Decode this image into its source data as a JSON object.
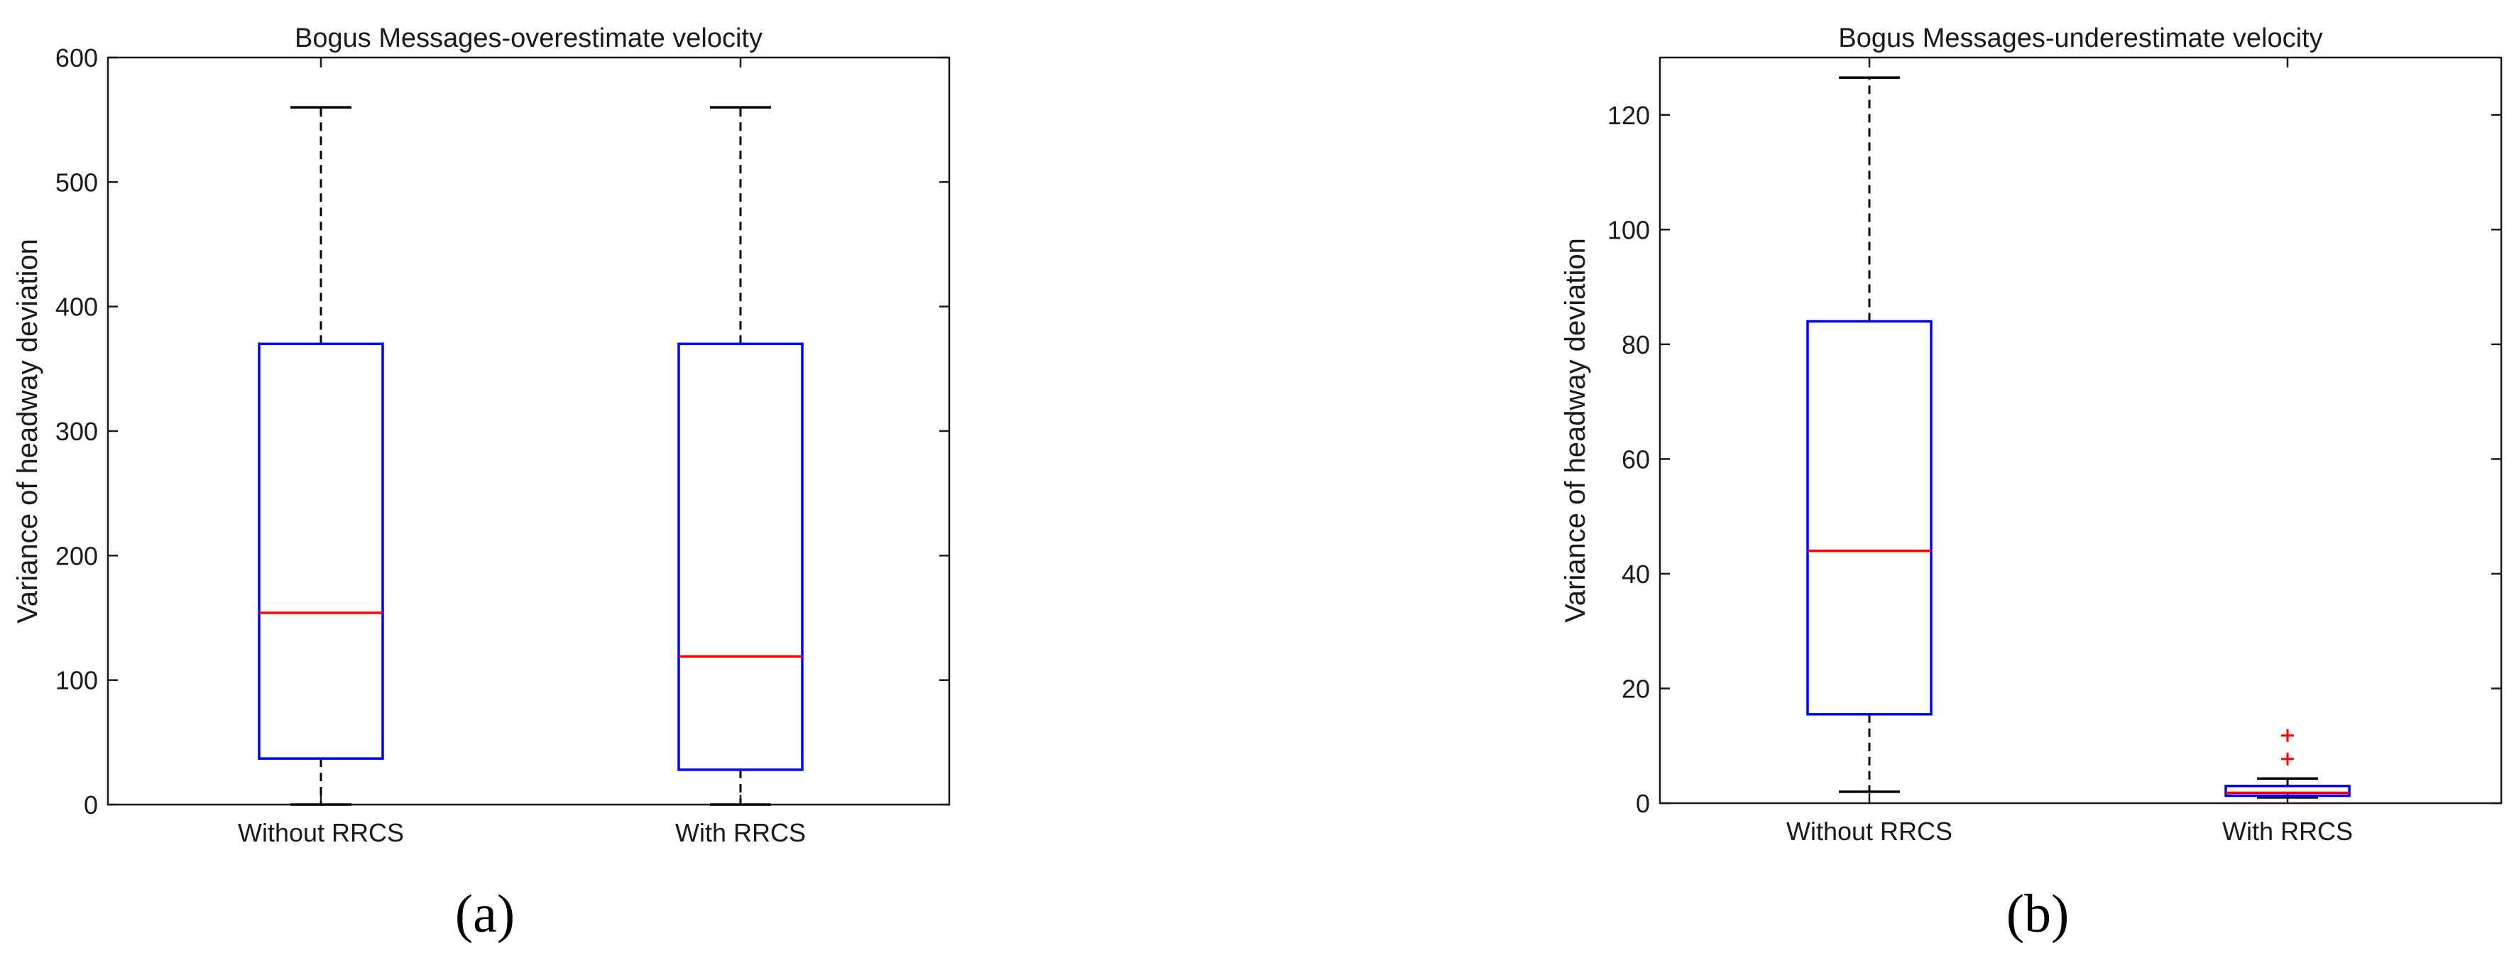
{
  "chart_data": [
    {
      "type": "box",
      "panel_label": "(a)",
      "title": "Bogus Messages-overestimate velocity",
      "xlabel": "",
      "ylabel": "Variance of headway deviation",
      "ylim": [
        0,
        600
      ],
      "yticks": [
        0,
        100,
        200,
        300,
        400,
        500,
        600
      ],
      "categories": [
        "Without RRCS",
        "With RRCS"
      ],
      "boxes": [
        {
          "category": "Without RRCS",
          "whisker_low": 0,
          "q1": 37,
          "median": 154,
          "q3": 370,
          "whisker_high": 560,
          "outliers": []
        },
        {
          "category": "With RRCS",
          "whisker_low": 0,
          "q1": 28,
          "median": 119,
          "q3": 370,
          "whisker_high": 560,
          "outliers": []
        }
      ],
      "colors": {
        "box": "#0000ff",
        "median": "#ff0000",
        "whisker": "#000000",
        "outlier": "#ff0000"
      }
    },
    {
      "type": "box",
      "panel_label": "(b)",
      "title": "Bogus Messages-underestimate velocity",
      "xlabel": "",
      "ylabel": "Variance of headway deviation",
      "ylim": [
        0,
        130
      ],
      "yticks": [
        0,
        20,
        40,
        60,
        80,
        100,
        120
      ],
      "categories": [
        "Without RRCS",
        "With RRCS"
      ],
      "boxes": [
        {
          "category": "Without RRCS",
          "whisker_low": 2,
          "q1": 15.5,
          "median": 44,
          "q3": 84,
          "whisker_high": 126.5,
          "outliers": []
        },
        {
          "category": "With RRCS",
          "whisker_low": 1,
          "q1": 1.3,
          "median": 1.8,
          "q3": 3,
          "whisker_high": 4.3,
          "outliers": [
            7.7,
            11.8
          ]
        }
      ],
      "colors": {
        "box": "#0000ff",
        "median": "#ff0000",
        "whisker": "#000000",
        "outlier": "#ff0000"
      }
    }
  ]
}
